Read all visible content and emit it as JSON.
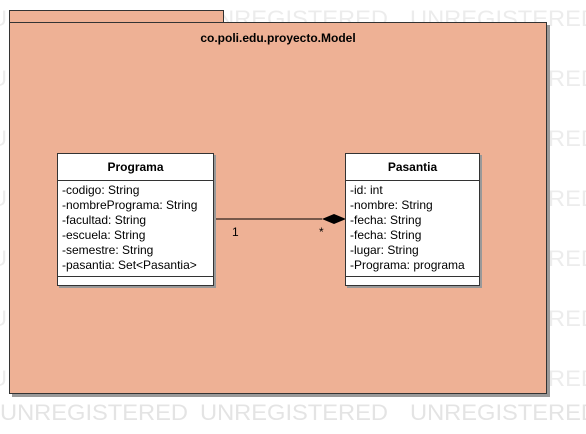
{
  "watermark": {
    "text": "UNREGISTERED"
  },
  "package": {
    "name": "co.poli.edu.proyecto.Model",
    "fill": "#EEB195",
    "stroke": "#333333"
  },
  "classes": {
    "programa": {
      "name": "Programa",
      "attributes": [
        "-codigo: String",
        "-nombrePrograma: String",
        "-facultad: String",
        "-escuela: String",
        "-semestre: String",
        "-pasantia: Set<Pasantia>"
      ]
    },
    "pasantia": {
      "name": "Pasantia",
      "attributes": [
        "-id: int",
        "-nombre: String",
        "-fecha: String",
        "-fecha: String",
        "-lugar: String",
        "-Programa: programa"
      ]
    }
  },
  "association": {
    "source_multiplicity": "1",
    "target_multiplicity": "*"
  }
}
